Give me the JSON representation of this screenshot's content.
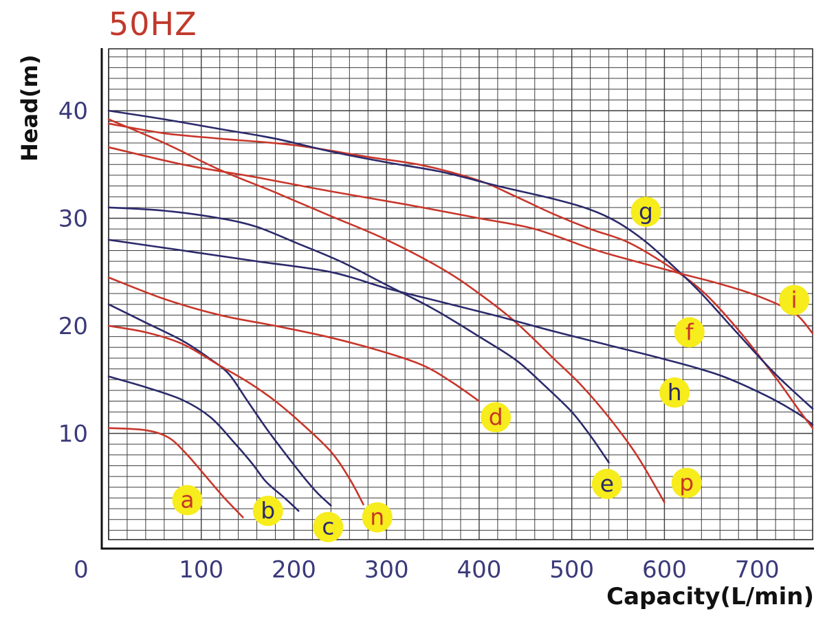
{
  "chart_data": {
    "type": "line",
    "title": "50HZ",
    "xlabel": "Capacity(L/min)",
    "ylabel": "Head(m)",
    "xlim": [
      0,
      760
    ],
    "ylim": [
      0,
      46
    ],
    "x_ticks": [
      0,
      100,
      200,
      300,
      400,
      500,
      600,
      700
    ],
    "y_ticks": [
      10,
      20,
      30,
      40
    ],
    "grid": true,
    "colors": {
      "blue": "#2b2a6b",
      "red": "#c8362a",
      "label_bg": "#f7ec1c",
      "tick_text": "#3a3a7a",
      "title": "#c0392b"
    },
    "series": [
      {
        "name": "a",
        "color": "red",
        "points": [
          [
            0,
            10.5
          ],
          [
            40,
            10.3
          ],
          [
            65,
            9.6
          ],
          [
            85,
            8.0
          ],
          [
            105,
            6.0
          ],
          [
            125,
            4.0
          ],
          [
            145,
            2.2
          ]
        ]
      },
      {
        "name": "b",
        "color": "blue",
        "points": [
          [
            0,
            15.3
          ],
          [
            40,
            14.3
          ],
          [
            80,
            13.1
          ],
          [
            110,
            11.5
          ],
          [
            135,
            9.2
          ],
          [
            155,
            7.2
          ],
          [
            170,
            5.5
          ],
          [
            190,
            4.0
          ],
          [
            205,
            2.8
          ]
        ]
      },
      {
        "name": "c",
        "color": "blue",
        "points": [
          [
            0,
            22.0
          ],
          [
            40,
            20.3
          ],
          [
            80,
            18.6
          ],
          [
            110,
            16.9
          ],
          [
            130,
            15.5
          ],
          [
            150,
            13.0
          ],
          [
            170,
            10.5
          ],
          [
            190,
            8.2
          ],
          [
            210,
            6.0
          ],
          [
            225,
            4.5
          ],
          [
            240,
            3.3
          ]
        ]
      },
      {
        "name": "n",
        "color": "red",
        "points": [
          [
            0,
            20.0
          ],
          [
            40,
            19.4
          ],
          [
            80,
            18.3
          ],
          [
            120,
            16.3
          ],
          [
            150,
            14.8
          ],
          [
            180,
            13.0
          ],
          [
            210,
            10.8
          ],
          [
            240,
            8.3
          ],
          [
            260,
            5.8
          ],
          [
            275,
            3.4
          ]
        ]
      },
      {
        "name": "d",
        "color": "red",
        "points": [
          [
            0,
            24.5
          ],
          [
            60,
            22.5
          ],
          [
            120,
            21.0
          ],
          [
            180,
            20.0
          ],
          [
            240,
            18.9
          ],
          [
            300,
            17.5
          ],
          [
            340,
            16.3
          ],
          [
            370,
            14.8
          ],
          [
            400,
            13.0
          ]
        ]
      },
      {
        "name": "e",
        "color": "blue",
        "points": [
          [
            0,
            31.0
          ],
          [
            60,
            30.7
          ],
          [
            120,
            30.0
          ],
          [
            160,
            29.2
          ],
          [
            200,
            27.8
          ],
          [
            250,
            26.0
          ],
          [
            300,
            23.8
          ],
          [
            350,
            21.6
          ],
          [
            400,
            19.0
          ],
          [
            440,
            16.8
          ],
          [
            470,
            14.5
          ],
          [
            500,
            12.0
          ],
          [
            520,
            9.8
          ],
          [
            540,
            7.3
          ]
        ]
      },
      {
        "name": "p",
        "color": "red",
        "points": [
          [
            0,
            39.2
          ],
          [
            60,
            37.0
          ],
          [
            120,
            34.5
          ],
          [
            180,
            32.4
          ],
          [
            240,
            30.2
          ],
          [
            300,
            28.0
          ],
          [
            360,
            25.3
          ],
          [
            400,
            23.0
          ],
          [
            440,
            20.3
          ],
          [
            480,
            17.0
          ],
          [
            510,
            14.5
          ],
          [
            540,
            11.5
          ],
          [
            570,
            8.0
          ],
          [
            600,
            3.6
          ]
        ]
      },
      {
        "name": "h",
        "color": "blue",
        "points": [
          [
            0,
            28.0
          ],
          [
            80,
            27.0
          ],
          [
            160,
            26.0
          ],
          [
            240,
            25.0
          ],
          [
            300,
            23.5
          ],
          [
            360,
            22.2
          ],
          [
            420,
            20.9
          ],
          [
            480,
            19.5
          ],
          [
            540,
            18.2
          ],
          [
            600,
            16.9
          ],
          [
            660,
            15.4
          ],
          [
            710,
            13.5
          ],
          [
            745,
            11.8
          ],
          [
            760,
            10.8
          ]
        ]
      },
      {
        "name": "f",
        "color": "red",
        "points": [
          [
            0,
            38.8
          ],
          [
            60,
            37.9
          ],
          [
            120,
            37.4
          ],
          [
            200,
            36.8
          ],
          [
            280,
            35.7
          ],
          [
            340,
            34.9
          ],
          [
            400,
            33.5
          ],
          [
            440,
            32.0
          ],
          [
            480,
            30.4
          ],
          [
            520,
            29.0
          ],
          [
            560,
            27.8
          ],
          [
            600,
            25.8
          ],
          [
            640,
            23.3
          ],
          [
            680,
            19.6
          ],
          [
            720,
            15.2
          ],
          [
            745,
            12.2
          ],
          [
            760,
            10.5
          ]
        ]
      },
      {
        "name": "g",
        "color": "blue",
        "points": [
          [
            0,
            40.0
          ],
          [
            60,
            39.2
          ],
          [
            120,
            38.3
          ],
          [
            180,
            37.4
          ],
          [
            240,
            36.2
          ],
          [
            300,
            35.2
          ],
          [
            360,
            34.3
          ],
          [
            420,
            33.0
          ],
          [
            480,
            31.8
          ],
          [
            520,
            30.8
          ],
          [
            550,
            29.6
          ],
          [
            580,
            27.8
          ],
          [
            610,
            25.5
          ],
          [
            640,
            23.0
          ],
          [
            680,
            19.2
          ],
          [
            720,
            15.5
          ],
          [
            760,
            12.3
          ]
        ]
      },
      {
        "name": "i",
        "color": "red",
        "points": [
          [
            0,
            36.6
          ],
          [
            80,
            35.0
          ],
          [
            160,
            33.8
          ],
          [
            240,
            32.5
          ],
          [
            320,
            31.3
          ],
          [
            400,
            30.0
          ],
          [
            460,
            29.0
          ],
          [
            520,
            27.2
          ],
          [
            560,
            26.2
          ],
          [
            620,
            24.8
          ],
          [
            660,
            23.9
          ],
          [
            700,
            22.8
          ],
          [
            740,
            21.2
          ],
          [
            760,
            19.3
          ]
        ]
      }
    ],
    "labels": [
      {
        "text": "a",
        "x": 85,
        "y": 3.8,
        "text_color": "red"
      },
      {
        "text": "b",
        "x": 172,
        "y": 2.8,
        "text_color": "blue"
      },
      {
        "text": "c",
        "x": 237,
        "y": 1.3,
        "text_color": "blue"
      },
      {
        "text": "n",
        "x": 290,
        "y": 2.2,
        "text_color": "red"
      },
      {
        "text": "d",
        "x": 418,
        "y": 11.5,
        "text_color": "red"
      },
      {
        "text": "e",
        "x": 538,
        "y": 5.3,
        "text_color": "blue"
      },
      {
        "text": "p",
        "x": 624,
        "y": 5.4,
        "text_color": "red"
      },
      {
        "text": "g",
        "x": 580,
        "y": 30.6,
        "text_color": "blue"
      },
      {
        "text": "h",
        "x": 611,
        "y": 13.8,
        "text_color": "blue"
      },
      {
        "text": "f",
        "x": 627,
        "y": 19.4,
        "text_color": "red"
      },
      {
        "text": "i",
        "x": 740,
        "y": 22.4,
        "text_color": "red"
      }
    ]
  }
}
